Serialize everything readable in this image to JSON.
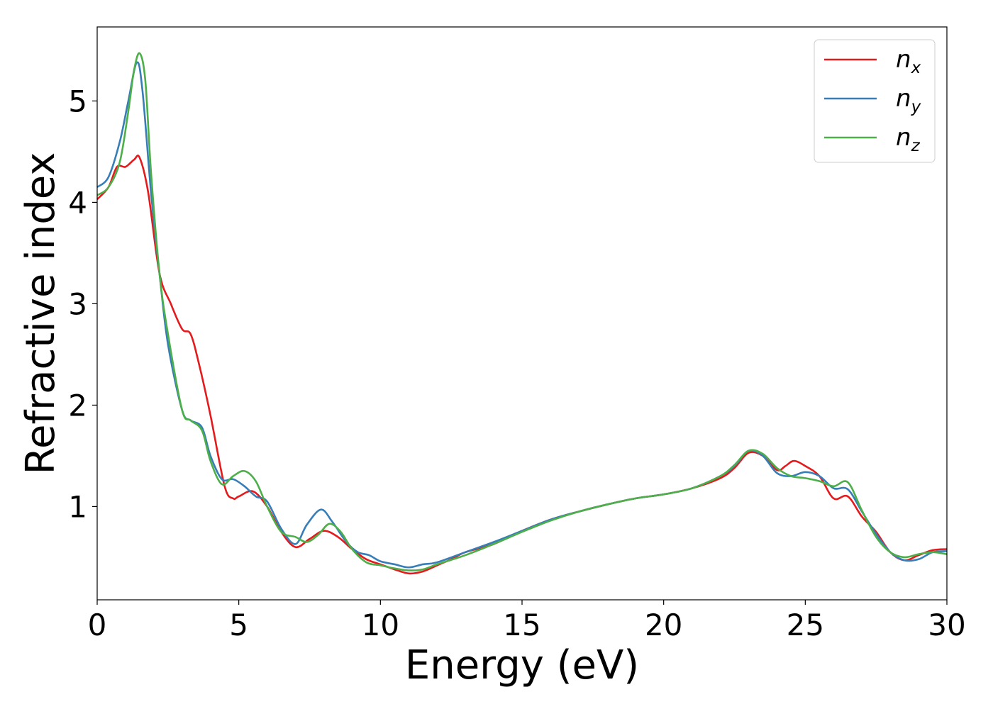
{
  "chart_data": {
    "type": "line",
    "title": "",
    "xlabel": "Energy (eV)",
    "ylabel": "Refractive index",
    "xlim": [
      0,
      30
    ],
    "ylim": [
      0.08,
      5.73
    ],
    "xticks": [
      0,
      5,
      10,
      15,
      20,
      25,
      30
    ],
    "xtick_labels": [
      "0",
      "5",
      "10",
      "15",
      "20",
      "25",
      "30"
    ],
    "yticks": [
      1,
      2,
      3,
      4,
      5
    ],
    "ytick_labels": [
      "1",
      "2",
      "3",
      "4",
      "5"
    ],
    "grid": false,
    "legend_position": "top-right",
    "series": [
      {
        "name": "n",
        "subscript": "x",
        "color": "#e41a1c",
        "x": [
          0,
          0.4,
          0.7,
          1.0,
          1.3,
          1.5,
          1.8,
          2.2,
          2.6,
          3.0,
          3.3,
          3.6,
          4.0,
          4.5,
          4.8,
          5.0,
          5.5,
          6.0,
          6.5,
          7.0,
          7.5,
          8.0,
          8.5,
          9.0,
          9.5,
          10.0,
          10.5,
          11.0,
          11.5,
          12.0,
          12.5,
          13.0,
          14.0,
          15.0,
          16.0,
          17.0,
          18.0,
          19.0,
          20.0,
          21.0,
          22.0,
          22.5,
          23.0,
          23.5,
          24.0,
          24.3,
          24.6,
          25.0,
          25.5,
          26.0,
          26.5,
          27.0,
          27.5,
          28.0,
          28.5,
          29.0,
          29.5,
          30.0
        ],
        "y": [
          4.03,
          4.15,
          4.35,
          4.35,
          4.42,
          4.44,
          4.1,
          3.3,
          3.0,
          2.75,
          2.7,
          2.4,
          1.9,
          1.2,
          1.08,
          1.1,
          1.15,
          1.0,
          0.75,
          0.6,
          0.68,
          0.76,
          0.7,
          0.58,
          0.48,
          0.43,
          0.38,
          0.34,
          0.36,
          0.42,
          0.48,
          0.55,
          0.63,
          0.76,
          0.87,
          0.95,
          1.02,
          1.08,
          1.12,
          1.18,
          1.28,
          1.38,
          1.53,
          1.5,
          1.36,
          1.4,
          1.45,
          1.4,
          1.3,
          1.08,
          1.1,
          0.9,
          0.75,
          0.55,
          0.47,
          0.52,
          0.57,
          0.58
        ]
      },
      {
        "name": "n",
        "subscript": "y",
        "color": "#377eb8",
        "x": [
          0,
          0.4,
          0.8,
          1.1,
          1.4,
          1.6,
          1.9,
          2.2,
          2.5,
          3.0,
          3.3,
          3.7,
          4.0,
          4.4,
          4.8,
          5.2,
          5.6,
          6.0,
          6.5,
          7.0,
          7.4,
          7.9,
          8.3,
          8.8,
          9.2,
          9.6,
          10.0,
          10.5,
          11.0,
          11.5,
          12.0,
          13.0,
          14.0,
          15.0,
          16.0,
          17.0,
          18.0,
          19.0,
          20.0,
          21.0,
          22.0,
          22.5,
          23.0,
          23.5,
          24.0,
          24.5,
          25.0,
          25.5,
          26.0,
          26.5,
          27.0,
          27.5,
          28.0,
          28.5,
          29.0,
          29.5,
          30.0
        ],
        "y": [
          4.15,
          4.25,
          4.6,
          5.0,
          5.38,
          5.1,
          4.1,
          3.3,
          2.6,
          1.95,
          1.85,
          1.78,
          1.5,
          1.27,
          1.27,
          1.2,
          1.1,
          1.05,
          0.78,
          0.63,
          0.82,
          0.97,
          0.85,
          0.65,
          0.55,
          0.52,
          0.46,
          0.43,
          0.4,
          0.43,
          0.45,
          0.55,
          0.65,
          0.76,
          0.87,
          0.95,
          1.02,
          1.08,
          1.12,
          1.18,
          1.3,
          1.4,
          1.55,
          1.5,
          1.33,
          1.3,
          1.34,
          1.3,
          1.18,
          1.17,
          0.95,
          0.73,
          0.55,
          0.47,
          0.48,
          0.55,
          0.56
        ]
      },
      {
        "name": "n",
        "subscript": "z",
        "color": "#4daf4a",
        "x": [
          0,
          0.4,
          0.8,
          1.1,
          1.3,
          1.5,
          1.7,
          1.9,
          2.2,
          2.5,
          3.0,
          3.3,
          3.7,
          4.0,
          4.4,
          4.8,
          5.2,
          5.6,
          6.0,
          6.5,
          7.0,
          7.4,
          7.8,
          8.2,
          8.6,
          9.0,
          9.5,
          10.0,
          10.5,
          11.0,
          11.5,
          12.0,
          13.0,
          14.0,
          15.0,
          16.0,
          17.0,
          18.0,
          19.0,
          20.0,
          21.0,
          22.0,
          22.5,
          23.0,
          23.5,
          24.0,
          24.5,
          25.0,
          25.5,
          26.0,
          26.5,
          27.0,
          27.5,
          28.0,
          28.5,
          29.0,
          29.5,
          30.0
        ],
        "y": [
          4.07,
          4.15,
          4.4,
          4.9,
          5.3,
          5.47,
          5.2,
          4.3,
          3.3,
          2.7,
          1.95,
          1.85,
          1.75,
          1.45,
          1.22,
          1.3,
          1.35,
          1.25,
          1.0,
          0.75,
          0.7,
          0.65,
          0.72,
          0.83,
          0.75,
          0.58,
          0.45,
          0.42,
          0.39,
          0.37,
          0.38,
          0.43,
          0.52,
          0.63,
          0.75,
          0.86,
          0.95,
          1.02,
          1.08,
          1.12,
          1.18,
          1.3,
          1.41,
          1.55,
          1.52,
          1.38,
          1.3,
          1.28,
          1.25,
          1.2,
          1.24,
          0.96,
          0.7,
          0.55,
          0.5,
          0.53,
          0.55,
          0.53
        ]
      }
    ]
  }
}
